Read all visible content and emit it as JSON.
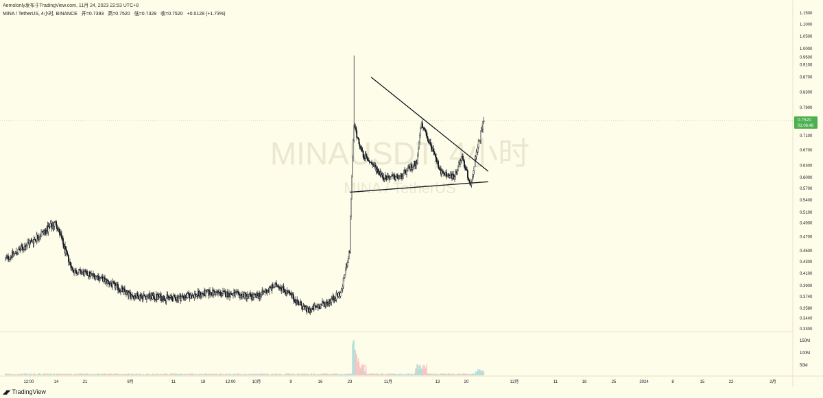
{
  "header": {
    "author_line": "Aemolonly发布于TradingView.com, 11月 24, 2023 22:53 UTC+8"
  },
  "legend": {
    "symbol": "MINA / TetherUS, 4小时, BINANCE",
    "open": "开=0.7393",
    "high": "高=0.7520",
    "low": "低=0.7328",
    "close": "收=0.7520",
    "change": "+0.0128 (+1.73%)"
  },
  "watermark": {
    "main": "MINAUSDT, 4小时",
    "sub": "MINA / TetherUS"
  },
  "footer": {
    "brand": "TradingView",
    "icon": "tradingview-logo-icon"
  },
  "colors": {
    "background": "#fefde9",
    "up": "#26a69a",
    "down": "#ef5350",
    "candle": "#131722",
    "price_tag": "#4caf50",
    "trendline": "#131722"
  },
  "chart_data": {
    "type": "candlestick",
    "symbol": "MINA / TetherUS",
    "interval": "4小时",
    "exchange": "BINANCE",
    "x_tick_labels": [
      "12:00",
      "14",
      "21",
      "9月",
      "11",
      "18",
      "12:00",
      "10月",
      "9",
      "16",
      "23",
      "11月",
      "13",
      "20",
      "12月",
      "11",
      "18",
      "25",
      "2024",
      "8",
      "15",
      "22",
      "2月"
    ],
    "y_tick_labels": [
      "1.1500",
      "1.1000",
      "1.0500",
      "1.0000",
      "0.9500",
      "0.9100",
      "0.8700",
      "0.8300",
      "0.7900",
      "0.7500",
      "0.7100",
      "0.6700",
      "0.6300",
      "0.6000",
      "0.5700",
      "0.5400",
      "0.5100",
      "0.4900",
      "0.4700",
      "0.4500",
      "0.4300",
      "0.4100",
      "0.3900",
      "0.3740",
      "0.3580",
      "0.3440",
      "0.3300"
    ],
    "volume_tick_labels": [
      "150M",
      "100M",
      "50M"
    ],
    "ylim": [
      0.33,
      1.15
    ],
    "log_scale": true,
    "last_price": "0.7520",
    "countdown": "01:06:48",
    "price_anchors": [
      {
        "date": "2023-08-03",
        "price": 0.435
      },
      {
        "date": "2023-08-10",
        "price": 0.47
      },
      {
        "date": "2023-08-14",
        "price": 0.49
      },
      {
        "date": "2023-08-18",
        "price": 0.415
      },
      {
        "date": "2023-08-24",
        "price": 0.405
      },
      {
        "date": "2023-09-01",
        "price": 0.376
      },
      {
        "date": "2023-09-11",
        "price": 0.372
      },
      {
        "date": "2023-09-20",
        "price": 0.38
      },
      {
        "date": "2023-10-01",
        "price": 0.374
      },
      {
        "date": "2023-10-06",
        "price": 0.392
      },
      {
        "date": "2023-10-10",
        "price": 0.37
      },
      {
        "date": "2023-10-13",
        "price": 0.354
      },
      {
        "date": "2023-10-18",
        "price": 0.367
      },
      {
        "date": "2023-10-21",
        "price": 0.38
      },
      {
        "date": "2023-10-23",
        "price": 0.45
      },
      {
        "date": "2023-10-24",
        "price": 0.74
      },
      {
        "date": "2023-10-26",
        "price": 0.66
      },
      {
        "date": "2023-10-31",
        "price": 0.6
      },
      {
        "date": "2023-11-04",
        "price": 0.6
      },
      {
        "date": "2023-11-08",
        "price": 0.64
      },
      {
        "date": "2023-11-09",
        "price": 0.74
      },
      {
        "date": "2023-11-11",
        "price": 0.69
      },
      {
        "date": "2023-11-14",
        "price": 0.61
      },
      {
        "date": "2023-11-17",
        "price": 0.6
      },
      {
        "date": "2023-11-19",
        "price": 0.65
      },
      {
        "date": "2023-11-21",
        "price": 0.58
      },
      {
        "date": "2023-11-22",
        "price": 0.64
      },
      {
        "date": "2023-11-24",
        "price": 0.752
      }
    ],
    "spike": {
      "date": "2023-10-24",
      "high": 0.96
    },
    "trendlines": [
      {
        "from": {
          "date": "2023-10-28",
          "price": 0.87
        },
        "to": {
          "date": "2023-11-25",
          "price": 0.615
        }
      },
      {
        "from": {
          "date": "2023-10-23",
          "price": 0.56
        },
        "to": {
          "date": "2023-11-25",
          "price": 0.588
        }
      }
    ]
  }
}
